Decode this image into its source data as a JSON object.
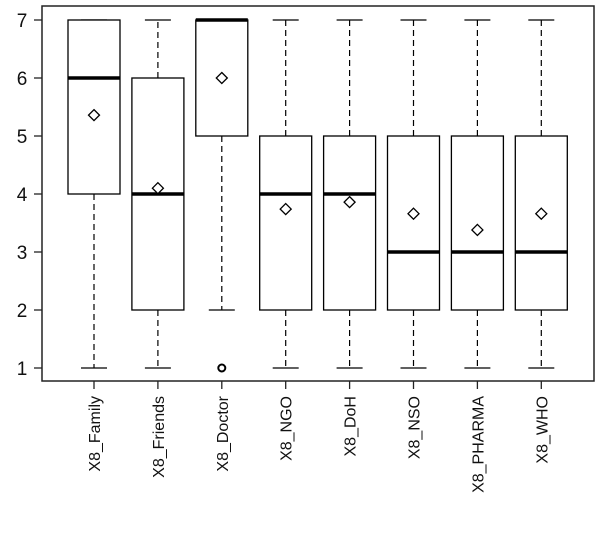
{
  "chart_data": {
    "type": "boxplot",
    "title": "",
    "xlabel": "",
    "ylabel": "",
    "ylim": [
      1,
      7
    ],
    "y_ticks": [
      1,
      2,
      3,
      4,
      5,
      6,
      7
    ],
    "grid": false,
    "categories": [
      "X8_Family",
      "X8_Friends",
      "X8_Doctor",
      "X8_NGO",
      "X8_DoH",
      "X8_NSO",
      "X8_PHARMA",
      "X8_WHO"
    ],
    "boxes": [
      {
        "whisker_low": 1,
        "q1": 4,
        "median": 6,
        "q3": 7,
        "whisker_high": 7,
        "mean": 5.36,
        "outliers": []
      },
      {
        "whisker_low": 1,
        "q1": 2,
        "median": 4,
        "q3": 6,
        "whisker_high": 7,
        "mean": 4.1,
        "outliers": []
      },
      {
        "whisker_low": 2,
        "q1": 5,
        "median": 7,
        "q3": 7,
        "whisker_high": 7,
        "mean": 6.0,
        "outliers": [
          1
        ]
      },
      {
        "whisker_low": 1,
        "q1": 2,
        "median": 4,
        "q3": 5,
        "whisker_high": 7,
        "mean": 3.74,
        "outliers": []
      },
      {
        "whisker_low": 1,
        "q1": 2,
        "median": 4,
        "q3": 5,
        "whisker_high": 7,
        "mean": 3.86,
        "outliers": []
      },
      {
        "whisker_low": 1,
        "q1": 2,
        "median": 3,
        "q3": 5,
        "whisker_high": 7,
        "mean": 3.66,
        "outliers": []
      },
      {
        "whisker_low": 1,
        "q1": 2,
        "median": 3,
        "q3": 5,
        "whisker_high": 7,
        "mean": 3.38,
        "outliers": []
      },
      {
        "whisker_low": 1,
        "q1": 2,
        "median": 3,
        "q3": 5,
        "whisker_high": 7,
        "mean": 3.66,
        "outliers": []
      }
    ],
    "mean_marker": "diamond",
    "colors": {
      "box_fill": "#ffffff",
      "line": "#000000"
    }
  }
}
